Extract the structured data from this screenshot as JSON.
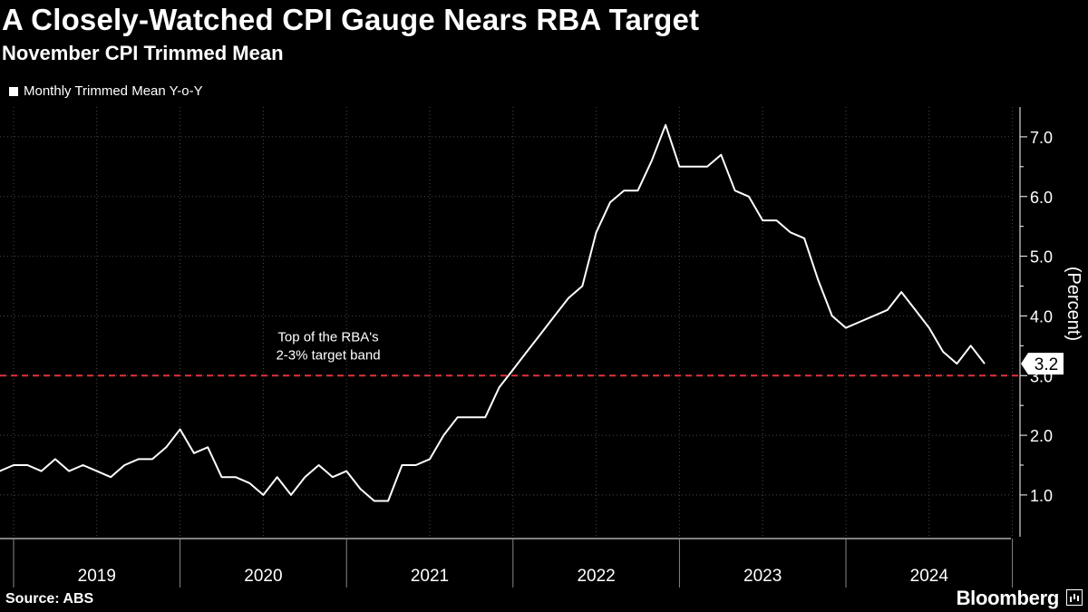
{
  "header": {
    "title": "A Closely-Watched CPI Gauge Nears RBA Target",
    "subtitle": "November CPI Trimmed Mean"
  },
  "footer": {
    "source": "Source: ABS",
    "brand": "Bloomberg",
    "brand_icon": "bloomberg-chart-icon"
  },
  "colors": {
    "background": "#000000",
    "line": "#ffffff",
    "target_line": "#e0333d",
    "grid": "#4a4a4a"
  },
  "chart_data": {
    "type": "line",
    "title": "A Closely-Watched CPI Gauge Nears RBA Target",
    "subtitle": "November CPI Trimmed Mean",
    "ylabel": "(Percent)",
    "xlabel": "",
    "ylim": [
      0.3,
      7.5
    ],
    "y_ticks": [
      1.0,
      2.0,
      3.0,
      4.0,
      5.0,
      6.0,
      7.0
    ],
    "y_tick_labels": [
      "1.0",
      "2.0",
      "3.0",
      "4.0",
      "5.0",
      "6.0",
      "7.0"
    ],
    "x_range": [
      "2018-11",
      "2024-12"
    ],
    "year_labels": [
      "2019",
      "2020",
      "2021",
      "2022",
      "2023",
      "2024"
    ],
    "grid": true,
    "legend": {
      "position": "top-left",
      "entries": [
        "Monthly Trimmed Mean Y-o-Y"
      ]
    },
    "series": [
      {
        "name": "Monthly Trimmed Mean Y-o-Y",
        "start": "2018-11",
        "values": [
          1.6,
          1.4,
          1.5,
          1.5,
          1.4,
          1.6,
          1.4,
          1.5,
          1.4,
          1.3,
          1.5,
          1.6,
          1.6,
          1.8,
          2.1,
          1.7,
          1.8,
          1.3,
          1.3,
          1.2,
          1.0,
          1.3,
          1.0,
          1.3,
          1.5,
          1.3,
          1.4,
          1.1,
          0.9,
          0.9,
          1.5,
          1.5,
          1.6,
          2.0,
          2.3,
          2.3,
          2.3,
          2.8,
          3.1,
          3.4,
          3.7,
          4.0,
          4.3,
          4.5,
          5.4,
          5.9,
          6.1,
          6.1,
          6.6,
          7.2,
          6.5,
          6.5,
          6.5,
          6.7,
          6.1,
          6.0,
          5.6,
          5.6,
          5.4,
          5.3,
          4.6,
          4.0,
          3.8,
          3.9,
          4.0,
          4.1,
          4.4,
          4.1,
          3.8,
          3.4,
          3.2,
          3.5,
          3.2
        ]
      }
    ],
    "reference_line": {
      "value": 3.0,
      "style": "dashed",
      "label_line1": "Top of the RBA's",
      "label_line2": "2-3% target band"
    },
    "last_value_label": "3.2"
  }
}
